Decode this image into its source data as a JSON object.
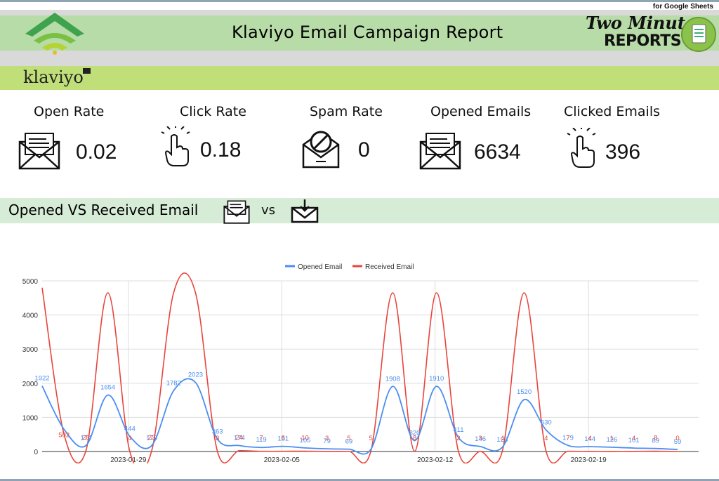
{
  "header": {
    "google_sheets_label": "for Google Sheets",
    "title": "Klaviyo Email Campaign Report",
    "brand_line1": "Two Minute",
    "brand_line2": "REPORTS",
    "klaviyo_logo": "klaviyo"
  },
  "metrics": [
    {
      "label": "Open Rate",
      "value": "0.02",
      "icon": "envelope-letter-icon"
    },
    {
      "label": "Click Rate",
      "value": "0.18",
      "icon": "pointer-hand-icon"
    },
    {
      "label": "Spam Rate",
      "value": "0",
      "icon": "spam-envelope-icon"
    },
    {
      "label": "Opened Emails",
      "value": "6634",
      "icon": "envelope-letter-icon"
    },
    {
      "label": "Clicked Emails",
      "value": "396",
      "icon": "pointer-hand-icon"
    }
  ],
  "section": {
    "title": "Opened VS Received Email",
    "vs_label": "vs"
  },
  "colors": {
    "opened": "#4a8ef0",
    "received": "#e8453c",
    "header_green": "#b7dca8",
    "klaviyo_green": "#c0df79"
  },
  "chart_data": {
    "type": "line",
    "legend": [
      "Opened Email",
      "Received Email"
    ],
    "ylim": [
      0,
      5000
    ],
    "yticks": [
      0,
      1000,
      2000,
      3000,
      4000,
      5000
    ],
    "xtick_labels": [
      "2023-01-29",
      "2023-02-05",
      "2023-02-12",
      "2023-02-19"
    ],
    "xtick_index": [
      4,
      11,
      18,
      25
    ],
    "series": [
      {
        "name": "Opened Email",
        "values": [
          1922,
          null,
          174,
          1654,
          444,
          173,
          1782,
          2023,
          363,
          174,
          119,
          151,
          105,
          79,
          69,
          null,
          1908,
          320,
          1910,
          411,
          146,
          123,
          1520,
          630,
          179,
          144,
          126,
          101,
          89,
          59
        ]
      },
      {
        "name": "Received Email",
        "values": [
          null,
          502,
          25,
          null,
          4,
          23,
          null,
          null,
          3,
          24,
          7,
          6,
          10,
          3,
          5,
          5,
          null,
          8,
          null,
          2,
          3,
          4,
          null,
          4,
          7,
          4,
          1,
          4,
          8,
          0
        ]
      }
    ],
    "opened_curve": [
      1922,
      650,
      174,
      1654,
      444,
      173,
      1782,
      2023,
      363,
      174,
      119,
      151,
      105,
      79,
      69,
      60,
      1908,
      320,
      1910,
      411,
      146,
      123,
      1520,
      630,
      179,
      144,
      126,
      101,
      89,
      59
    ],
    "received_curve": [
      4800,
      502,
      25,
      4650,
      4,
      23,
      4650,
      4650,
      3,
      24,
      7,
      6,
      10,
      3,
      5,
      5,
      4650,
      8,
      4650,
      2,
      3,
      4,
      4650,
      4,
      7,
      4,
      1,
      4,
      8,
      0
    ]
  }
}
